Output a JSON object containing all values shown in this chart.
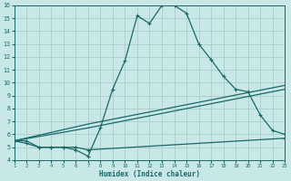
{
  "xlabel": "Humidex (Indice chaleur)",
  "bg_color": "#c8e8e8",
  "grid_color": "#b0d0d0",
  "line_color": "#1a6868",
  "xlim": [
    1,
    23
  ],
  "ylim": [
    4,
    16
  ],
  "xticks": [
    1,
    2,
    3,
    4,
    5,
    6,
    7,
    8,
    9,
    10,
    11,
    12,
    13,
    14,
    15,
    16,
    17,
    18,
    19,
    20,
    21,
    22,
    23
  ],
  "yticks": [
    4,
    5,
    6,
    7,
    8,
    9,
    10,
    11,
    12,
    13,
    14,
    15,
    16
  ],
  "series_peak": {
    "x": [
      1,
      2,
      3,
      4,
      5,
      6,
      7,
      8,
      9,
      10,
      11,
      12,
      13,
      14,
      15,
      16,
      17,
      18,
      19,
      20,
      21,
      22,
      23
    ],
    "y": [
      5.5,
      5.5,
      5.0,
      5.0,
      5.0,
      4.8,
      4.3,
      6.5,
      9.5,
      11.7,
      15.2,
      14.6,
      16.0,
      16.0,
      15.4,
      13.0,
      11.8,
      10.5,
      9.5,
      9.3,
      7.5,
      6.3,
      6.0
    ]
  },
  "series_diag1": {
    "x": [
      1,
      7,
      23
    ],
    "y": [
      5.5,
      6.5,
      9.5
    ]
  },
  "series_diag2": {
    "x": [
      1,
      7,
      23
    ],
    "y": [
      5.5,
      6.8,
      9.8
    ]
  },
  "series_flat": {
    "x": [
      1,
      2,
      3,
      4,
      5,
      6,
      7,
      23
    ],
    "y": [
      5.5,
      5.3,
      5.0,
      5.0,
      5.0,
      5.0,
      4.8,
      5.7
    ]
  }
}
